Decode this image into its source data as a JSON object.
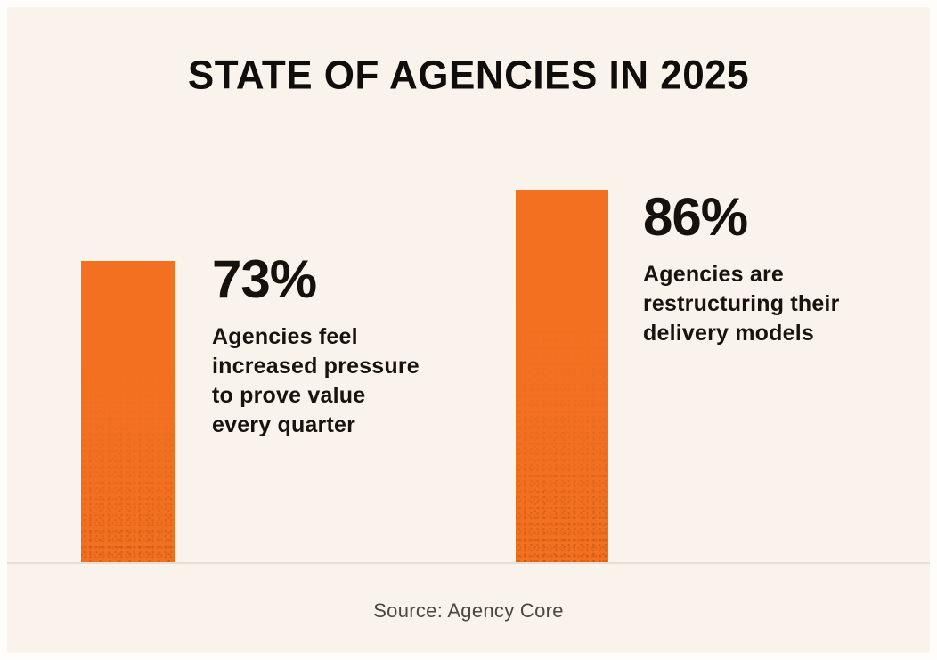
{
  "title": "STATE OF AGENCIES IN 2025",
  "source_note": "Source: Agency Core",
  "colors": {
    "bar_orange": "#f37021",
    "card_background": "#faf3ec",
    "frame_background": "#fffdfb",
    "title_text": "#100e0c",
    "stat_text": "#17130f",
    "source_text": "#4b4742",
    "baseline": "#e4ded6"
  },
  "stats": [
    {
      "value": "73%",
      "label": "Agencies feel\nincreased pressure\nto prove value\nevery quarter"
    },
    {
      "value": "86%",
      "label": "Agencies are\nrestructuring their\ndelivery models"
    }
  ],
  "chart_data": {
    "type": "bar",
    "title": "STATE OF AGENCIES IN 2025",
    "categories": [
      "Agencies feel increased pressure to prove value every quarter",
      "Agencies are restructuring their delivery models"
    ],
    "values": [
      73,
      86
    ],
    "unit": "%",
    "xlabel": "",
    "ylabel": "",
    "ylim": [
      0,
      100
    ],
    "grid": false,
    "legend": "none",
    "data_labels": [
      "73%",
      "86%"
    ],
    "bar_color": "#f37021",
    "source": "Source: Agency Core"
  }
}
